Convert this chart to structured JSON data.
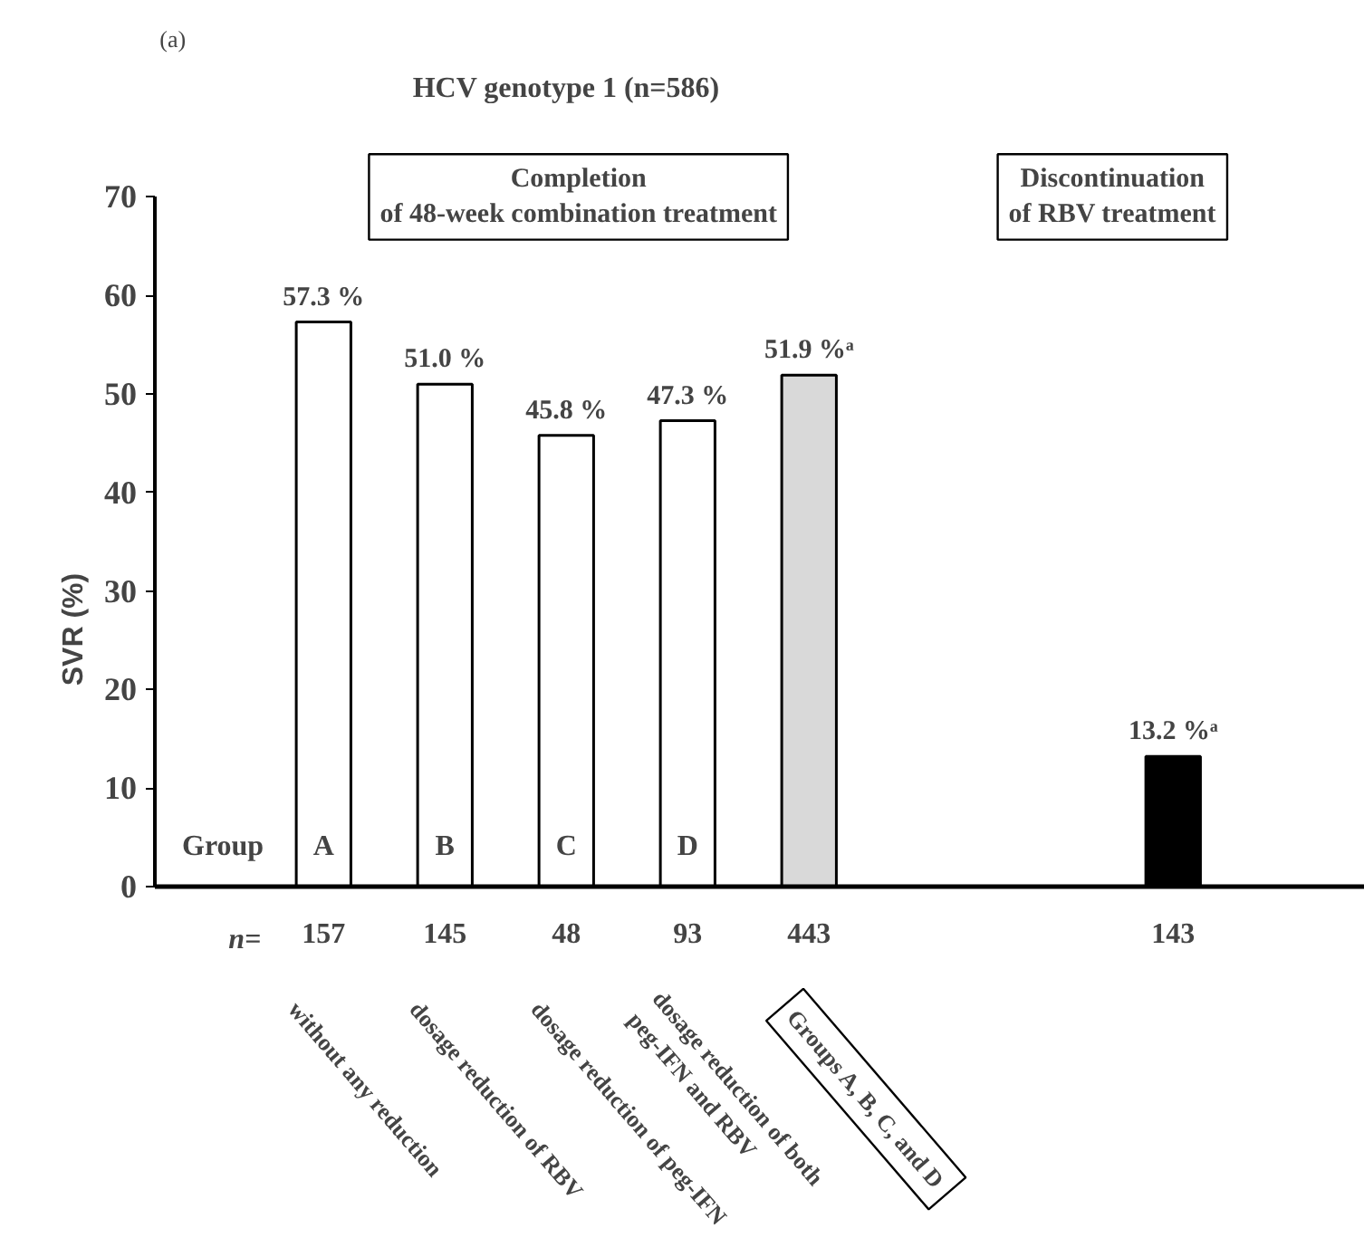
{
  "chart_data": {
    "type": "bar",
    "title": "HCV genotype 1 (n=586)",
    "ylabel": "SVR (%)",
    "categories": [
      "157",
      "145",
      "48",
      "93",
      "443",
      null,
      null,
      "143"
    ],
    "values": [
      57.3,
      51.0,
      45.8,
      47.3,
      51.9,
      null,
      null,
      13.2
    ],
    "colors": [
      "#ffffff",
      "#ffffff",
      "#ffffff",
      "#ffffff",
      "#d9d9d9",
      "#ffffff",
      "#ffffff",
      "#000000"
    ],
    "value_labels": [
      "57.3 %",
      "51.0 %",
      "45.8 %",
      "47.3 %",
      "51.9 %ᵃ",
      null,
      null,
      "13.2 %ᵃ"
    ],
    "ylim": [
      0,
      70
    ],
    "yticks": [
      0,
      10,
      20,
      30,
      40,
      50,
      60,
      70
    ],
    "grid": false,
    "annotations": [
      "(a)",
      "Completion\nof 48-week combination treatment",
      "Discontinuation\nof RBV treatment",
      "Group",
      "A",
      "B",
      "C",
      "D",
      "n=",
      "without any reduction",
      "dosage reduction of RBV",
      "dosage reduction of peg-IFN",
      "dosage reduction of both\npeg-IFN and RBV",
      "Groups A, B, C, and D"
    ]
  }
}
